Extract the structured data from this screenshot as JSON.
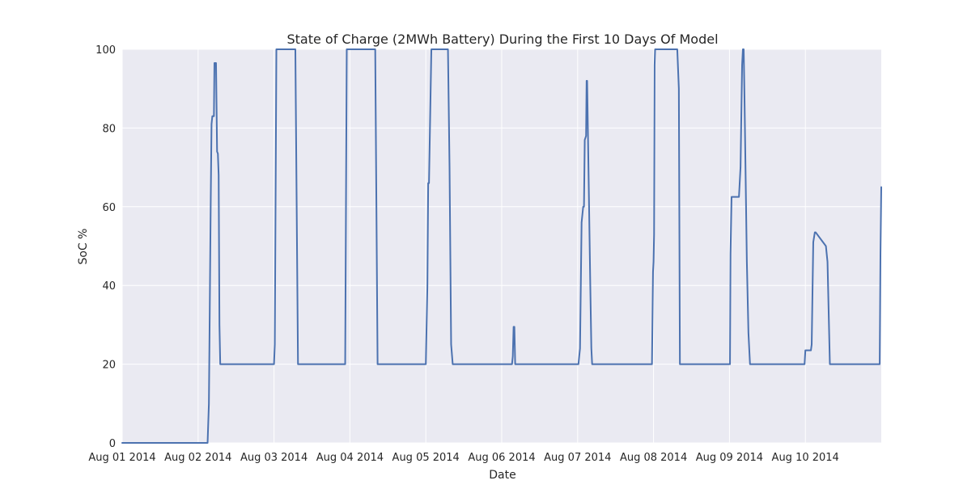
{
  "chart_data": {
    "type": "line",
    "title": "State of Charge (2MWh Battery) During the First 10 Days Of Model",
    "xlabel": "Date",
    "ylabel": "SoC %",
    "xlim": [
      "2014-08-01 00:00",
      "2014-08-11 00:00"
    ],
    "ylim": [
      0,
      100
    ],
    "xticks": [
      "Aug 01 2014",
      "Aug 02 2014",
      "Aug 03 2014",
      "Aug 04 2014",
      "Aug 05 2014",
      "Aug 06 2014",
      "Aug 07 2014",
      "Aug 08 2014",
      "Aug 09 2014",
      "Aug 10 2014"
    ],
    "yticks": [
      "0",
      "20",
      "40",
      "60",
      "80",
      "100"
    ],
    "grid": true,
    "line_color": "#4c72b0",
    "series": [
      {
        "x": [
          "2014-08-01 00:00",
          "2014-08-02 03:00",
          "2014-08-02 03:25",
          "2014-08-02 04:00",
          "2014-08-02 04:15",
          "2014-08-02 04:30",
          "2014-08-02 05:00",
          "2014-08-02 05:10",
          "2014-08-02 05:40",
          "2014-08-02 06:00",
          "2014-08-02 06:15",
          "2014-08-02 06:30",
          "2014-08-02 06:45",
          "2014-08-02 07:00",
          "2014-08-02 07:15",
          "2014-08-02 07:30",
          "2014-08-03 00:00",
          "2014-08-03 00:15",
          "2014-08-03 00:45",
          "2014-08-03 06:45",
          "2014-08-03 07:35",
          "2014-08-03 22:30",
          "2014-08-03 23:00",
          "2014-08-04 08:00",
          "2014-08-04 08:45",
          "2014-08-05 00:00",
          "2014-08-05 00:30",
          "2014-08-05 00:45",
          "2014-08-05 01:00",
          "2014-08-05 01:45",
          "2014-08-05 02:00",
          "2014-08-05 07:00",
          "2014-08-05 07:30",
          "2014-08-05 08:00",
          "2014-08-05 08:30",
          "2014-08-06 03:15",
          "2014-08-06 03:30",
          "2014-08-06 03:45",
          "2014-08-06 04:00",
          "2014-08-06 04:15",
          "2014-08-06 04:30",
          "2014-08-07 00:15",
          "2014-08-07 00:45",
          "2014-08-07 01:15",
          "2014-08-07 01:45",
          "2014-08-07 02:00",
          "2014-08-07 02:15",
          "2014-08-07 02:40",
          "2014-08-07 02:50",
          "2014-08-07 03:00",
          "2014-08-07 04:00",
          "2014-08-07 04:20",
          "2014-08-07 04:35",
          "2014-08-07 23:30",
          "2014-08-07 23:50",
          "2014-08-08 00:00",
          "2014-08-08 00:10",
          "2014-08-08 00:20",
          "2014-08-08 00:30",
          "2014-08-08 00:35",
          "2014-08-08 01:00",
          "2014-08-08 07:30",
          "2014-08-08 08:00",
          "2014-08-08 08:20",
          "2014-08-09 00:00",
          "2014-08-09 00:10",
          "2014-08-09 00:20",
          "2014-08-09 00:40",
          "2014-08-09 01:00",
          "2014-08-09 03:00",
          "2014-08-09 03:30",
          "2014-08-09 04:00",
          "2014-08-09 04:15",
          "2014-08-09 04:30",
          "2014-08-09 04:45",
          "2014-08-09 05:30",
          "2014-08-09 06:00",
          "2014-08-09 06:30",
          "2014-08-09 07:15",
          "2014-08-09 07:45",
          "2014-08-09 23:45",
          "2014-08-10 00:00",
          "2014-08-10 01:45",
          "2014-08-10 02:00",
          "2014-08-10 02:30",
          "2014-08-10 03:00",
          "2014-08-10 03:15",
          "2014-08-10 06:30",
          "2014-08-10 07:00",
          "2014-08-10 07:45",
          "2014-08-10 08:30",
          "2014-08-10 09:00",
          "2014-08-10 23:30",
          "2014-08-10 23:45",
          "2014-08-11 00:00"
        ],
        "y": [
          0,
          0,
          10,
          62,
          81,
          83,
          83,
          96.5,
          96.5,
          74,
          73.5,
          68,
          30,
          20,
          20,
          20,
          20,
          25,
          100,
          100,
          20,
          20,
          100,
          100,
          20,
          20,
          40,
          66,
          66,
          100,
          100,
          100,
          70,
          25,
          20,
          20,
          22,
          29.5,
          29.5,
          20,
          20,
          20,
          24,
          56,
          60,
          60,
          77,
          78,
          92,
          92,
          40,
          24,
          20,
          20,
          43.5,
          46,
          53,
          96,
          100,
          100,
          100,
          100,
          90,
          20,
          20,
          20,
          48,
          62.5,
          62.5,
          62.5,
          70,
          96,
          100,
          100,
          88,
          46,
          28,
          20,
          20,
          20,
          20,
          23.5,
          23.5,
          25,
          51,
          53.5,
          53.5,
          50,
          46,
          20,
          20,
          20,
          20,
          48,
          65
        ]
      }
    ]
  }
}
